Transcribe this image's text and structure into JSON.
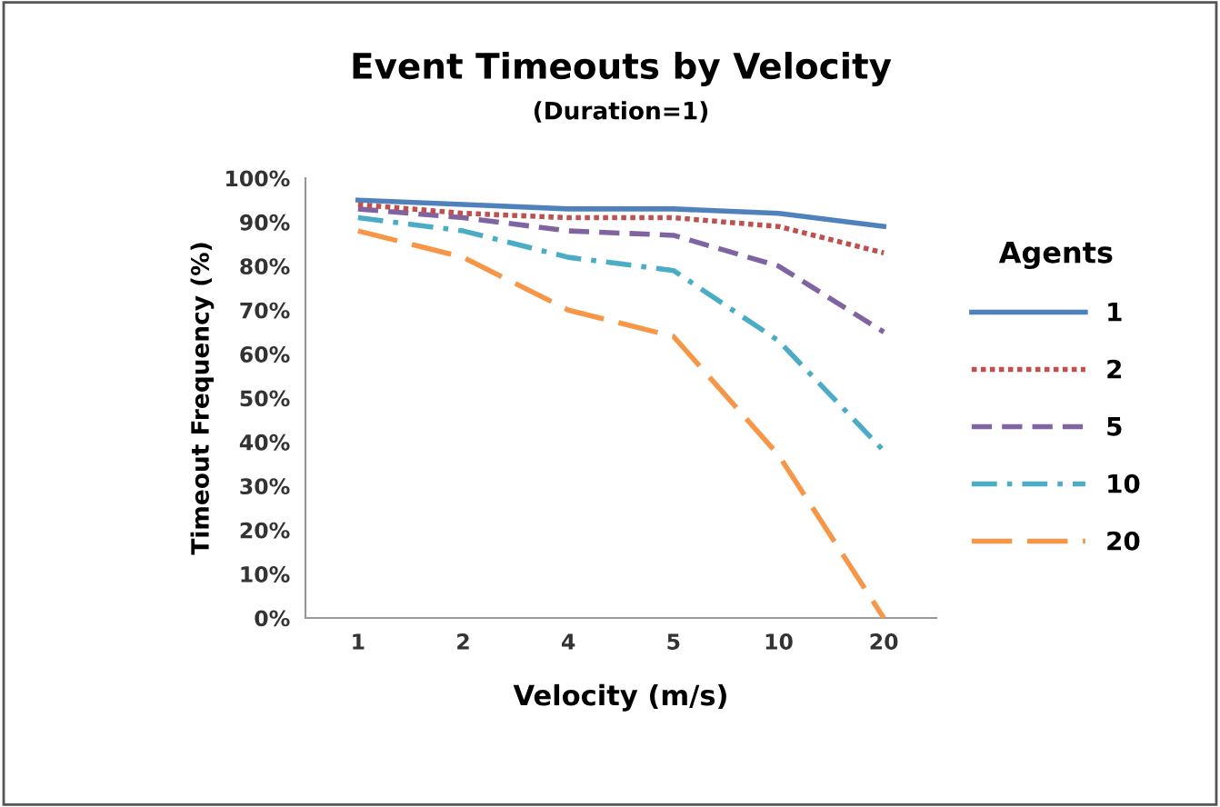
{
  "chart_data": {
    "type": "line",
    "title": "Event Timeouts by Velocity",
    "subtitle": "(Duration=1)",
    "xlabel": "Velocity (m/s)",
    "ylabel": "Timeout Frequency (%)",
    "legend_title": "Agents",
    "legend": "right",
    "grid": false,
    "categories": [
      "1",
      "2",
      "4",
      "5",
      "10",
      "20"
    ],
    "ylim": [
      0,
      100
    ],
    "yticks": [
      {
        "value": 0,
        "label": "0%"
      },
      {
        "value": 10,
        "label": "10%"
      },
      {
        "value": 20,
        "label": "20%"
      },
      {
        "value": 30,
        "label": "30%"
      },
      {
        "value": 40,
        "label": "40%"
      },
      {
        "value": 50,
        "label": "50%"
      },
      {
        "value": 60,
        "label": "60%"
      },
      {
        "value": 70,
        "label": "70%"
      },
      {
        "value": 80,
        "label": "80%"
      },
      {
        "value": 90,
        "label": "90%"
      },
      {
        "value": 100,
        "label": "100%"
      }
    ],
    "series": [
      {
        "name": "1",
        "color": "#4f81bd",
        "line_style": "solid",
        "values": [
          95,
          94,
          93,
          93,
          92,
          89
        ]
      },
      {
        "name": "2",
        "color": "#c0504d",
        "line_style": "dotted",
        "values": [
          94,
          92,
          91,
          91,
          89,
          83
        ]
      },
      {
        "name": "5",
        "color": "#8064a2",
        "line_style": "dashed",
        "values": [
          93,
          91,
          88,
          87,
          80,
          65
        ]
      },
      {
        "name": "10",
        "color": "#4bacc6",
        "line_style": "dashdot",
        "values": [
          91,
          88,
          82,
          79,
          63,
          38
        ]
      },
      {
        "name": "20",
        "color": "#f79646",
        "line_style": "longdash",
        "values": [
          88,
          82,
          70,
          64,
          37,
          0
        ]
      }
    ]
  }
}
